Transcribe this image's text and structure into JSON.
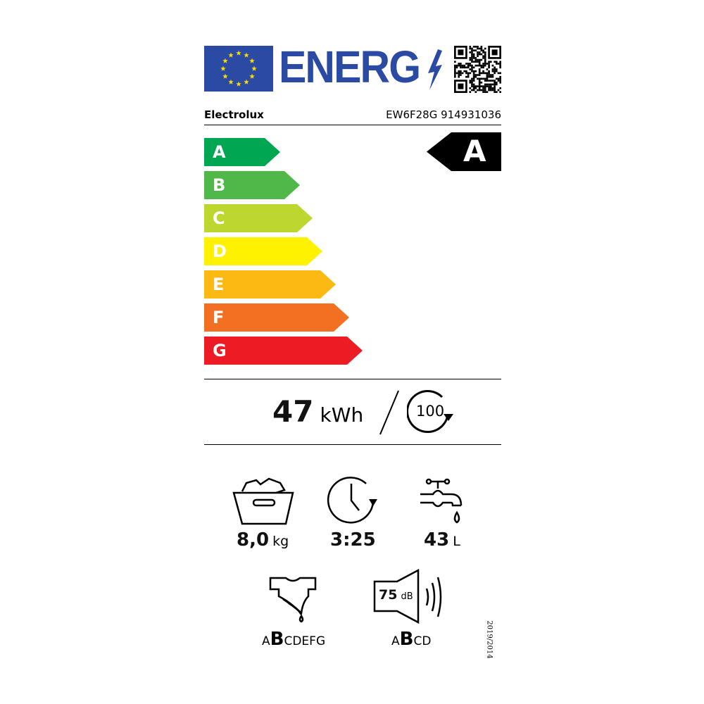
{
  "header": {
    "logo_text": "ENERG",
    "icons": [
      "eu-flag-icon",
      "lightning-icon",
      "qr-code-icon"
    ]
  },
  "supplier": "Electrolux",
  "model": "EW6F28G 914931036",
  "scale": [
    {
      "letter": "A",
      "color": "#00a651"
    },
    {
      "letter": "B",
      "color": "#50b848"
    },
    {
      "letter": "C",
      "color": "#bed630"
    },
    {
      "letter": "D",
      "color": "#fff200"
    },
    {
      "letter": "E",
      "color": "#fdb913"
    },
    {
      "letter": "F",
      "color": "#f36f21"
    },
    {
      "letter": "G",
      "color": "#ed1c24"
    }
  ],
  "energy_class": "A",
  "energy": {
    "value": "47",
    "unit": "kWh",
    "cycles": "100"
  },
  "capacity": {
    "value": "8,0",
    "unit": "kg"
  },
  "duration": {
    "value": "3:25"
  },
  "water": {
    "value": "43",
    "unit": "L"
  },
  "spin_class": {
    "before": "A",
    "selected": "B",
    "after": "CDEFG"
  },
  "noise": {
    "value": "75",
    "unit": "dB",
    "before": "A",
    "selected": "B",
    "after": "CD"
  },
  "regulation": "2019/2014"
}
